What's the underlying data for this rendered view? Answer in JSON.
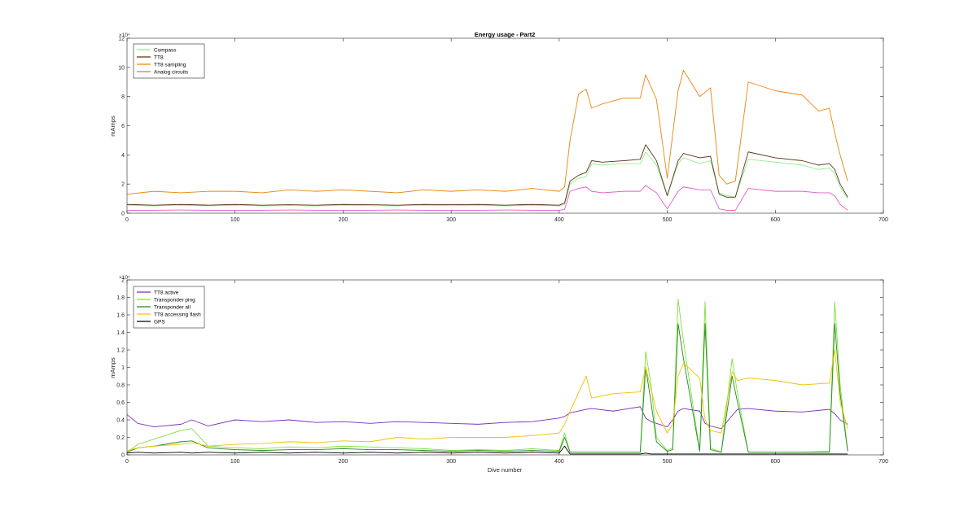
{
  "chart_data": [
    {
      "type": "line",
      "title": "Energy usage - Part2",
      "xlabel": "",
      "ylabel": "mAmps",
      "exponent_label": "×10⁴",
      "xlim": [
        0,
        700
      ],
      "ylim": [
        0,
        12
      ],
      "xticks": [
        0,
        100,
        200,
        300,
        400,
        500,
        600,
        700
      ],
      "yticks": [
        0,
        2,
        4,
        6,
        8,
        10,
        12
      ],
      "legend_position": "top-left",
      "grid": false,
      "x": [
        0,
        25,
        50,
        75,
        100,
        125,
        150,
        175,
        200,
        225,
        250,
        275,
        300,
        325,
        350,
        375,
        400,
        405,
        410,
        418,
        425,
        430,
        440,
        460,
        475,
        480,
        490,
        500,
        510,
        515,
        530,
        540,
        548,
        555,
        563,
        575,
        600,
        625,
        640,
        650,
        655,
        660,
        667
      ],
      "series": [
        {
          "name": "Compass",
          "color": "#90ee90",
          "values": [
            0.55,
            0.5,
            0.55,
            0.5,
            0.55,
            0.5,
            0.52,
            0.5,
            0.55,
            0.52,
            0.5,
            0.55,
            0.52,
            0.55,
            0.5,
            0.55,
            0.5,
            0.6,
            2.0,
            2.4,
            2.5,
            3.4,
            3.3,
            3.4,
            3.4,
            4.2,
            3.3,
            1.2,
            3.4,
            3.8,
            3.4,
            3.6,
            1.4,
            1.2,
            1.1,
            3.7,
            3.5,
            3.3,
            3.0,
            3.1,
            2.7,
            1.8,
            1.0
          ]
        },
        {
          "name": "TT8",
          "color": "#5c3317",
          "values": [
            0.6,
            0.55,
            0.6,
            0.55,
            0.6,
            0.55,
            0.58,
            0.55,
            0.6,
            0.58,
            0.55,
            0.6,
            0.58,
            0.6,
            0.55,
            0.6,
            0.55,
            0.7,
            2.2,
            2.6,
            2.8,
            3.6,
            3.5,
            3.6,
            3.7,
            4.7,
            3.6,
            1.2,
            3.6,
            4.1,
            3.8,
            3.9,
            1.3,
            1.1,
            1.1,
            4.2,
            3.8,
            3.6,
            3.3,
            3.4,
            3.0,
            2.0,
            1.1
          ]
        },
        {
          "name": "TT8 sampling",
          "color": "#e6860a",
          "values": [
            1.3,
            1.5,
            1.4,
            1.5,
            1.5,
            1.4,
            1.6,
            1.5,
            1.6,
            1.5,
            1.4,
            1.6,
            1.5,
            1.6,
            1.5,
            1.7,
            1.5,
            1.8,
            5.0,
            8.2,
            8.5,
            7.2,
            7.5,
            7.9,
            7.9,
            9.5,
            7.8,
            2.4,
            8.4,
            9.8,
            8.0,
            8.6,
            2.6,
            2.0,
            2.2,
            9.0,
            8.4,
            8.1,
            7.0,
            7.2,
            5.5,
            4.0,
            2.2
          ]
        },
        {
          "name": "Analog circuits",
          "color": "#e05cc8",
          "values": [
            0.2,
            0.2,
            0.22,
            0.2,
            0.2,
            0.2,
            0.22,
            0.2,
            0.2,
            0.2,
            0.22,
            0.2,
            0.2,
            0.2,
            0.22,
            0.2,
            0.2,
            0.25,
            1.5,
            1.7,
            1.8,
            1.5,
            1.4,
            1.5,
            1.5,
            1.9,
            1.4,
            0.3,
            1.5,
            1.8,
            1.6,
            1.6,
            0.3,
            0.2,
            0.2,
            1.7,
            1.5,
            1.5,
            1.4,
            1.4,
            1.2,
            0.6,
            0.2
          ]
        }
      ]
    },
    {
      "type": "line",
      "title": "",
      "xlabel": "Dive number",
      "ylabel": "mAmps",
      "exponent_label": "×10⁴",
      "xlim": [
        0,
        700
      ],
      "ylim": [
        0,
        2
      ],
      "xticks": [
        0,
        100,
        200,
        300,
        400,
        500,
        600,
        700
      ],
      "yticks": [
        0,
        0.2,
        0.4,
        0.6,
        0.8,
        1,
        1.2,
        1.4,
        1.6,
        1.8,
        2
      ],
      "legend_position": "top-left",
      "grid": false,
      "x": [
        0,
        10,
        25,
        50,
        60,
        75,
        100,
        125,
        150,
        175,
        200,
        225,
        250,
        275,
        300,
        325,
        350,
        375,
        400,
        405,
        410,
        425,
        430,
        450,
        475,
        480,
        485,
        490,
        500,
        505,
        510,
        515,
        530,
        535,
        540,
        550,
        560,
        565,
        575,
        600,
        625,
        650,
        655,
        660,
        667
      ],
      "series": [
        {
          "name": "TT8 active",
          "color": "#7b2cbf",
          "values": [
            0.46,
            0.36,
            0.32,
            0.35,
            0.4,
            0.33,
            0.4,
            0.38,
            0.4,
            0.37,
            0.38,
            0.36,
            0.38,
            0.37,
            0.36,
            0.35,
            0.37,
            0.38,
            0.42,
            0.44,
            0.48,
            0.52,
            0.53,
            0.5,
            0.55,
            0.42,
            0.38,
            0.36,
            0.32,
            0.4,
            0.5,
            0.53,
            0.5,
            0.36,
            0.33,
            0.3,
            0.45,
            0.52,
            0.53,
            0.5,
            0.49,
            0.52,
            0.47,
            0.4,
            0.35
          ]
        },
        {
          "name": "Transponder ping",
          "color": "#7fe03a",
          "values": [
            0.03,
            0.12,
            0.18,
            0.28,
            0.3,
            0.1,
            0.08,
            0.07,
            0.09,
            0.08,
            0.1,
            0.09,
            0.08,
            0.07,
            0.05,
            0.06,
            0.05,
            0.07,
            0.05,
            0.25,
            0.03,
            0.03,
            0.03,
            0.03,
            0.03,
            1.18,
            0.8,
            0.2,
            0.05,
            0.08,
            1.78,
            1.3,
            0.05,
            1.75,
            0.08,
            0.03,
            1.1,
            0.7,
            0.03,
            0.03,
            0.03,
            0.04,
            1.75,
            0.8,
            0.05
          ]
        },
        {
          "name": "Transponder all",
          "color": "#1e8c1e",
          "values": [
            0.03,
            0.08,
            0.1,
            0.15,
            0.16,
            0.08,
            0.06,
            0.05,
            0.06,
            0.06,
            0.07,
            0.06,
            0.06,
            0.05,
            0.04,
            0.05,
            0.04,
            0.05,
            0.04,
            0.2,
            0.03,
            0.03,
            0.03,
            0.03,
            0.03,
            1.0,
            0.6,
            0.15,
            0.04,
            0.06,
            1.5,
            1.1,
            0.04,
            1.5,
            0.06,
            0.03,
            0.9,
            0.6,
            0.03,
            0.03,
            0.03,
            0.03,
            1.5,
            0.7,
            0.04
          ]
        },
        {
          "name": "TT8 accessing flash",
          "color": "#f2c200",
          "values": [
            0.05,
            0.08,
            0.1,
            0.12,
            0.14,
            0.1,
            0.12,
            0.13,
            0.15,
            0.14,
            0.16,
            0.15,
            0.2,
            0.18,
            0.2,
            0.2,
            0.2,
            0.22,
            0.25,
            0.35,
            0.5,
            0.9,
            0.65,
            0.7,
            0.72,
            1.0,
            0.75,
            0.5,
            0.25,
            0.35,
            0.9,
            1.05,
            0.88,
            0.4,
            0.28,
            0.25,
            0.95,
            0.85,
            0.88,
            0.85,
            0.8,
            0.82,
            1.2,
            0.6,
            0.3
          ]
        },
        {
          "name": "GPS",
          "color": "#000000",
          "values": [
            0.02,
            0.03,
            0.02,
            0.03,
            0.02,
            0.03,
            0.02,
            0.03,
            0.02,
            0.03,
            0.02,
            0.03,
            0.02,
            0.03,
            0.02,
            0.03,
            0.02,
            0.03,
            0.02,
            0.1,
            0.01,
            0.01,
            0.01,
            0.01,
            0.01,
            0.02,
            0.01,
            0.01,
            0.01,
            0.01,
            0.01,
            0.01,
            0.01,
            0.01,
            0.01,
            0.01,
            0.01,
            0.01,
            0.01,
            0.01,
            0.01,
            0.01,
            0.01,
            0.01,
            0.01
          ]
        }
      ]
    }
  ]
}
